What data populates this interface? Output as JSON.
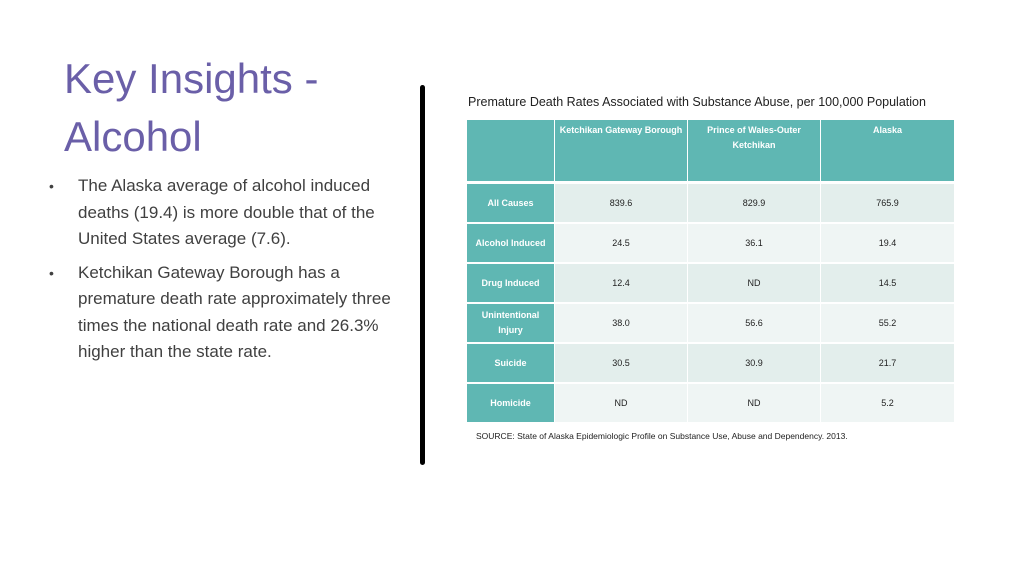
{
  "title": "Key Insights - Alcohol",
  "bullets": [
    "The Alaska average of alcohol induced deaths (19.4) is more double that of the United States average (7.6).",
    "Ketchikan Gateway Borough has a premature death rate approximately three times the national death rate and 26.3% higher than the state rate."
  ],
  "bullet_symbol": "•",
  "table": {
    "title": "Premature Death Rates Associated with Substance Abuse, per 100,000 Population",
    "headers": [
      "",
      "Ketchikan Gateway Borough",
      "Prince of Wales-Outer Ketchikan",
      "Alaska"
    ],
    "rows": [
      [
        "All Causes",
        "839.6",
        "829.9",
        "765.9"
      ],
      [
        "Alcohol Induced",
        "24.5",
        "36.1",
        "19.4"
      ],
      [
        "Drug Induced",
        "12.4",
        "ND",
        "14.5"
      ],
      [
        "Unintentional Injury",
        "38.0",
        "56.6",
        "55.2"
      ],
      [
        "Suicide",
        "30.5",
        "30.9",
        "21.7"
      ],
      [
        "Homicide",
        "ND",
        "ND",
        "5.2"
      ]
    ],
    "source": "SOURCE: State of Alaska Epidemiologic Profile on Substance Use, Abuse and Dependency. 2013."
  },
  "colors": {
    "title": "#6a5fa8",
    "table_header": "#5fb7b3",
    "row_band_a": "#e3eeec",
    "row_band_b": "#eff5f4",
    "divider": "#000000"
  }
}
